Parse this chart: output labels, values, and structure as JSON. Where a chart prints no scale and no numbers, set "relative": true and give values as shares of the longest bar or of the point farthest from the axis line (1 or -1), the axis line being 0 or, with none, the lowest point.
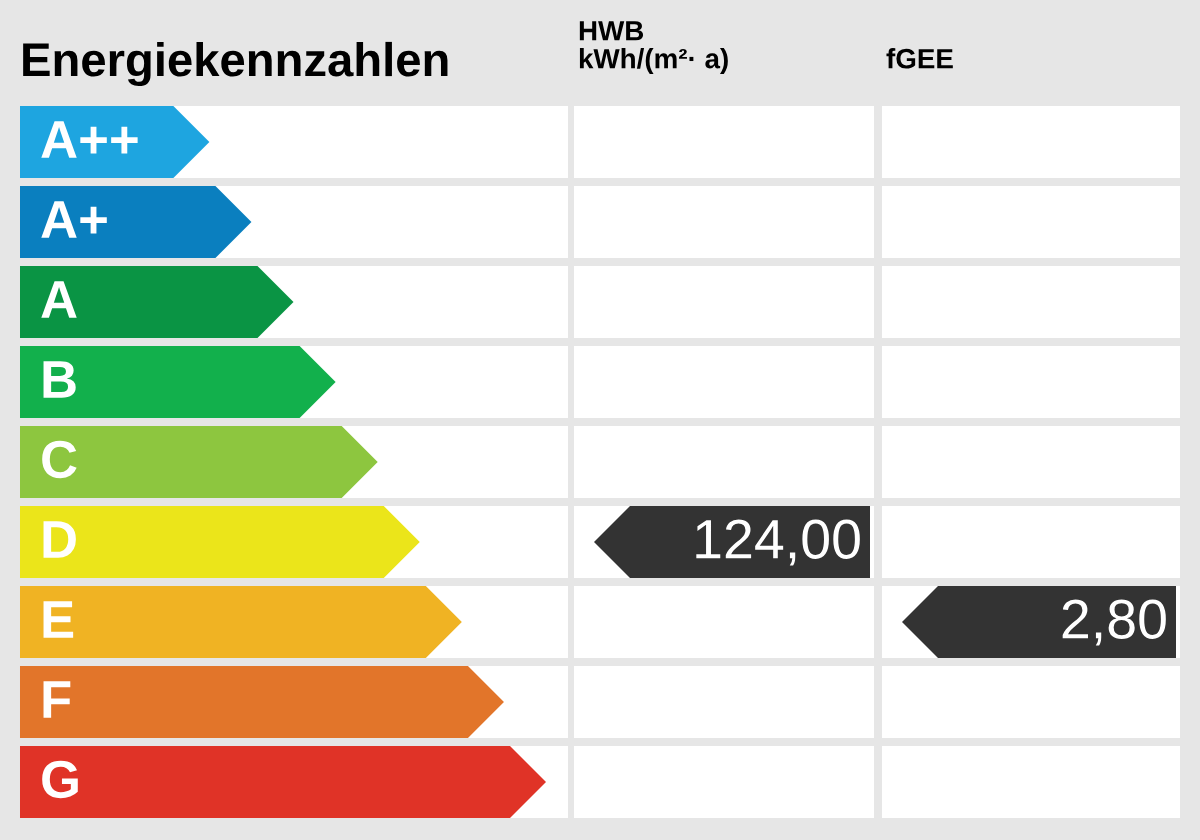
{
  "chart_data": {
    "type": "bar",
    "orientation": "horizontal",
    "relative": true,
    "title": "Energiekennzahlen",
    "categories": [
      "A++",
      "A+",
      "A",
      "B",
      "C",
      "D",
      "E",
      "F",
      "G"
    ],
    "values": [
      0.36,
      0.44,
      0.52,
      0.6,
      0.68,
      0.76,
      0.84,
      0.92,
      1.0
    ],
    "colors": [
      "#1ea5e0",
      "#0a7fbf",
      "#0a9444",
      "#12b04c",
      "#8dc63f",
      "#ebe51a",
      "#f0b323",
      "#e2752a",
      "#e03327"
    ],
    "annotations": [
      "HWB\nkWh/(m²· a)",
      "fGEE",
      "124,00",
      "2,80"
    ]
  }
}
